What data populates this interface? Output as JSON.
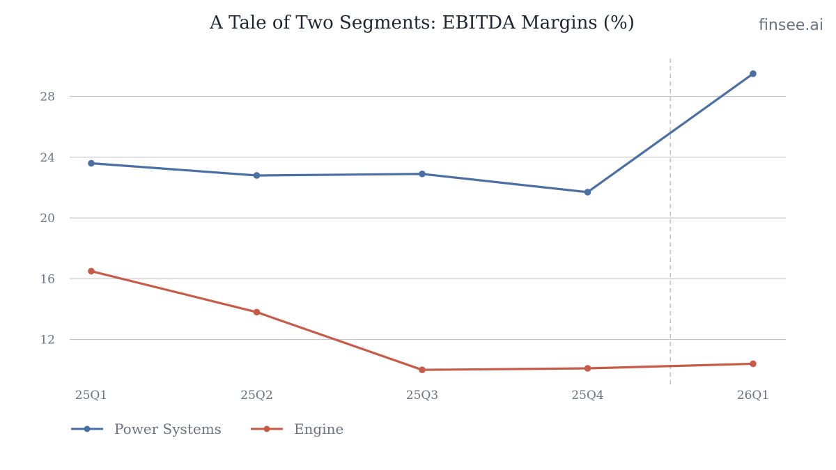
{
  "watermark": "finsee.ai",
  "chart_data": {
    "type": "line",
    "title": "A Tale of Two Segments: EBITDA Margins (%)",
    "xlabel": "",
    "ylabel": "",
    "categories": [
      "25Q1",
      "25Q2",
      "25Q3",
      "25Q4",
      "26Q1"
    ],
    "yticks": [
      12,
      16,
      20,
      24,
      28
    ],
    "ylim": [
      9,
      30.5
    ],
    "grid": true,
    "legend_position": "bottom-left",
    "divider_between": [
      "25Q4",
      "26Q1"
    ],
    "series": [
      {
        "name": "Power Systems",
        "color": "#4a6fa5",
        "values": [
          23.6,
          22.8,
          22.9,
          21.7,
          29.5
        ]
      },
      {
        "name": "Engine",
        "color": "#c75b48",
        "values": [
          16.5,
          13.8,
          10.0,
          10.1,
          10.4
        ]
      }
    ]
  }
}
